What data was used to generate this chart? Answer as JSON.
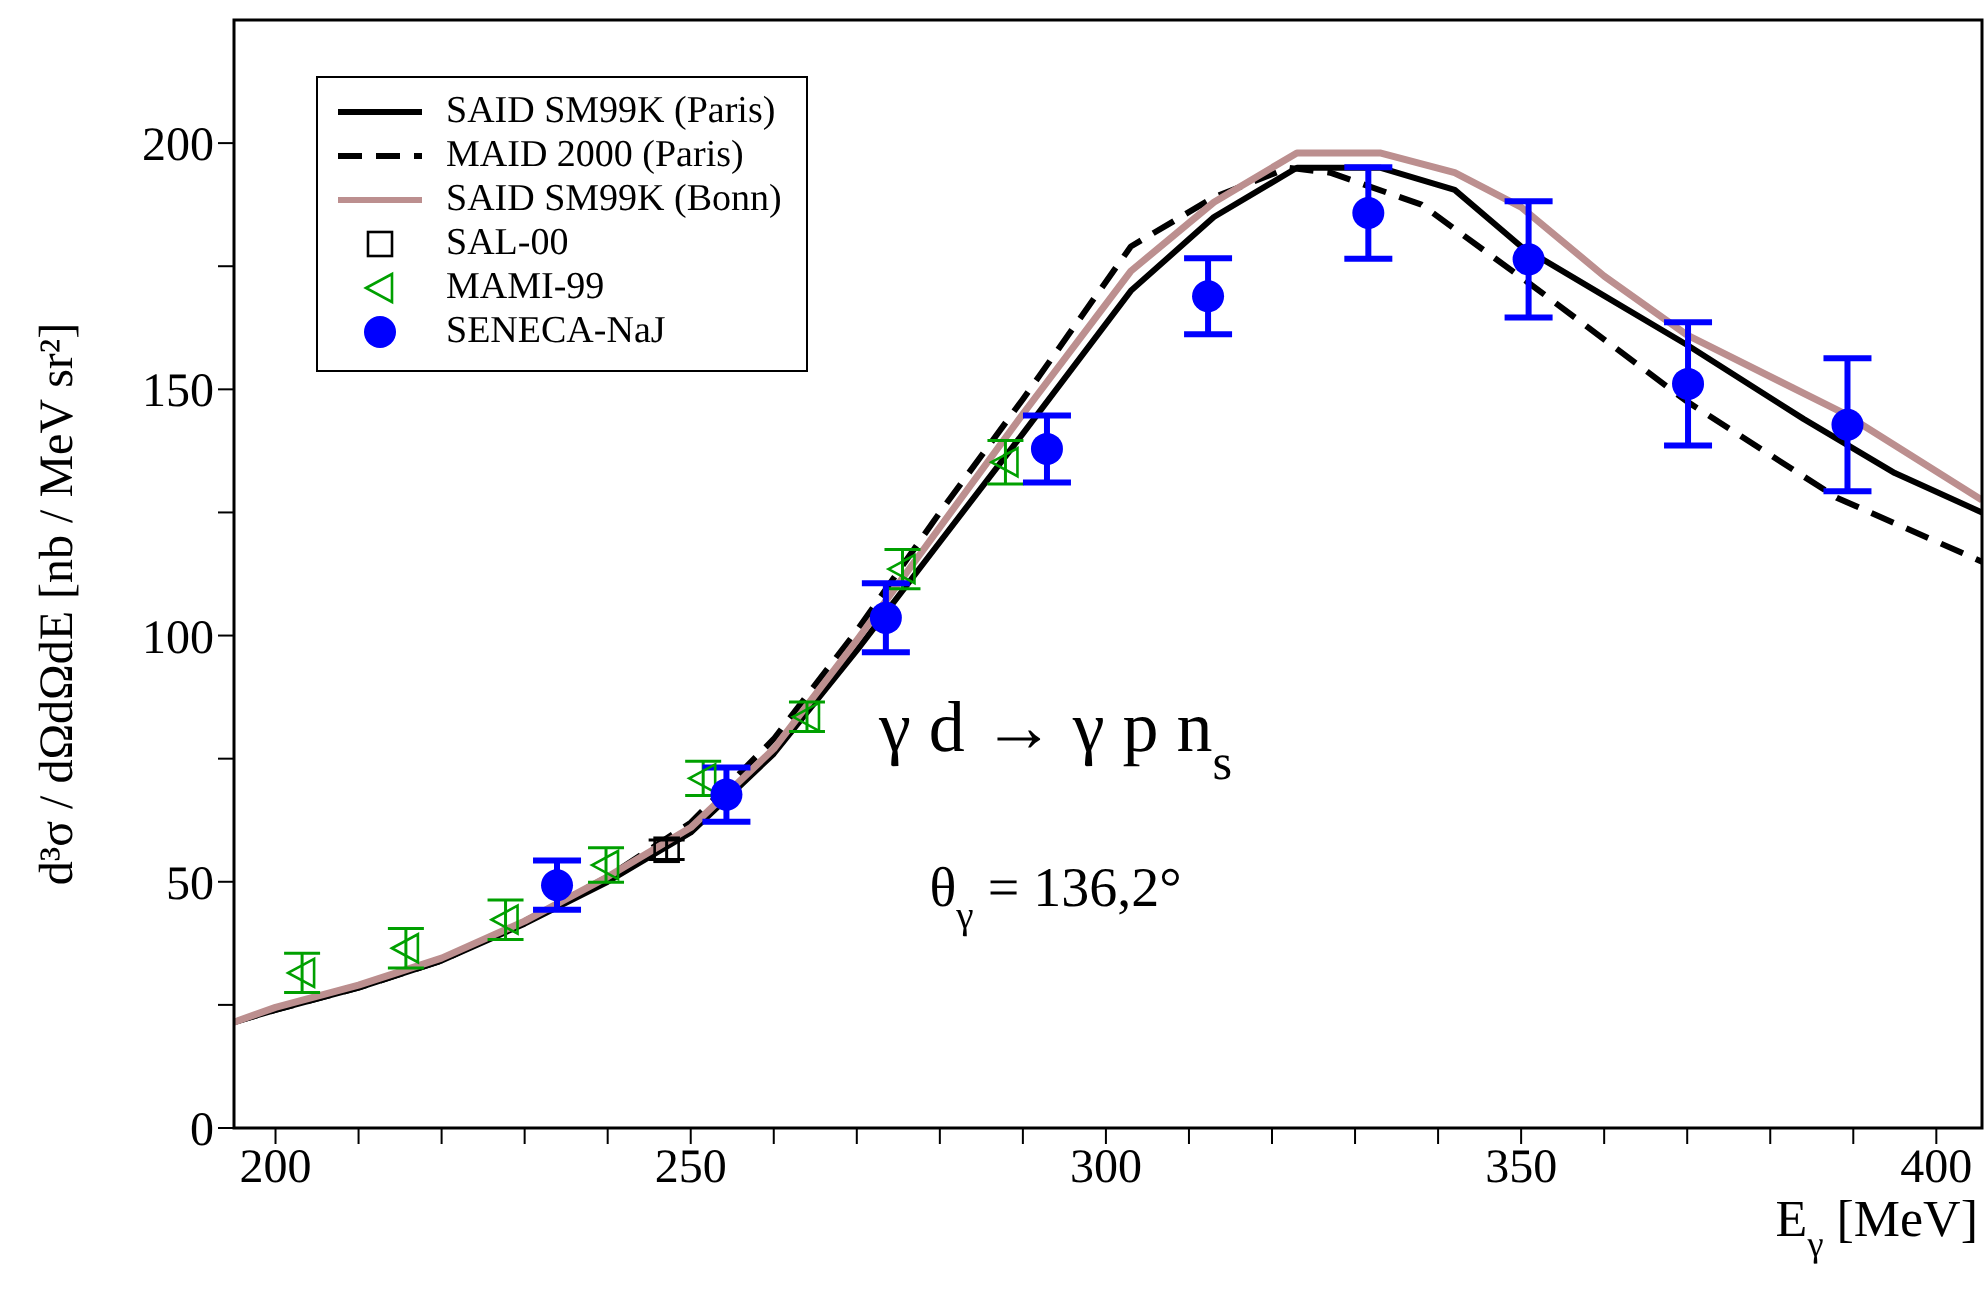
{
  "chart_data": {
    "type": "line",
    "xlabel": "E$_{γ}$  [MeV]",
    "ylabel": "d³σ / dΩdΩdE  [nb / MeV sr²]",
    "annotations": [
      "γ d → γ p n$_{s}$",
      "θ$_{γ}$ = 136,2°"
    ],
    "xlim": [
      195,
      405.5
    ],
    "ylim": [
      0,
      225
    ],
    "xticks": [
      200,
      {
        "value": 210,
        "label": null
      },
      {
        "value": 220,
        "label": null
      },
      {
        "value": 230,
        "label": null
      },
      {
        "value": 240,
        "label": null
      },
      250,
      {
        "value": 260,
        "label": null
      },
      {
        "value": 270,
        "label": null
      },
      {
        "value": 280,
        "label": null
      },
      {
        "value": 290,
        "label": null
      },
      300,
      {
        "value": 310,
        "label": null
      },
      {
        "value": 320,
        "label": null
      },
      {
        "value": 330,
        "label": null
      },
      {
        "value": 340,
        "label": null
      },
      350,
      {
        "value": 360,
        "label": null
      },
      {
        "value": 370,
        "label": null
      },
      {
        "value": 380,
        "label": null
      },
      {
        "value": 390,
        "label": null
      },
      400
    ],
    "yticks": [
      0,
      {
        "value": 25,
        "label": null
      },
      50,
      {
        "value": 75,
        "label": null
      },
      100,
      {
        "value": 125,
        "label": null
      },
      150,
      {
        "value": 175,
        "label": null
      },
      200
    ],
    "grid": false,
    "legend": "top left",
    "series": [
      {
        "name": "SAID SM99K (Paris)",
        "color": "#000000",
        "line_style": "solid",
        "marker": "none",
        "x": [
          195,
          200,
          210,
          220,
          230,
          240,
          250,
          260,
          270,
          280,
          290,
          303,
          313,
          323,
          333,
          342,
          350,
          359,
          370,
          384,
          395,
          405.5
        ],
        "values": [
          21.5,
          24,
          28.5,
          34,
          41.5,
          50,
          60,
          76,
          97,
          119,
          141,
          170,
          185,
          195,
          195,
          190.5,
          179,
          170,
          159,
          144,
          133,
          125
        ]
      },
      {
        "name": "MAID 2000 (Paris)",
        "color": "#000000",
        "line_style": "dashed",
        "marker": "none",
        "x": [
          195,
          200,
          210,
          220,
          230,
          240,
          250,
          260,
          270,
          280,
          290,
          303,
          313,
          322,
          327,
          338,
          351,
          370,
          388,
          405.5
        ],
        "values": [
          21.5,
          24,
          28.5,
          34,
          42,
          51,
          62,
          79,
          101,
          125,
          148,
          179,
          189,
          195,
          194,
          187.5,
          171.5,
          147.5,
          128,
          115
        ]
      },
      {
        "name": "SAID SM99K (Bonn)",
        "color": "#bc8f8f",
        "line_style": "solid",
        "marker": "none",
        "x": [
          195,
          200,
          210,
          220,
          230,
          240,
          250,
          260,
          270,
          280,
          290,
          303,
          313,
          323,
          333,
          342,
          350,
          360,
          370,
          389,
          405.5
        ],
        "values": [
          21.5,
          24.5,
          29,
          34.5,
          42,
          51,
          61,
          77,
          99,
          122,
          145,
          174,
          188,
          198,
          198,
          194,
          187,
          173,
          161,
          145,
          127.5
        ]
      },
      {
        "name": "SAL-00",
        "type": "scatter",
        "color": "#000000",
        "marker": "square",
        "x": [
          247.1
        ],
        "values": [
          56.5
        ],
        "errors": [
          2
        ]
      },
      {
        "name": "MAMI-99",
        "type": "scatter",
        "color": "#00a000",
        "marker": "triangle",
        "x": [
          203.2,
          215.7,
          227.7,
          239.8,
          251.5,
          264,
          275.5,
          287.9
        ],
        "values": [
          31.5,
          36.5,
          42.3,
          53.4,
          71,
          83.5,
          113.5,
          135.2
        ],
        "errors": [
          4,
          4,
          4,
          3.5,
          3.5,
          3,
          4,
          4.4
        ]
      },
      {
        "name": "SENECA-NaJ",
        "type": "scatter",
        "color": "#0000ff",
        "marker": "circle",
        "x": [
          233.9,
          254.3,
          273.5,
          292.9,
          312.3,
          331.6,
          350.9,
          370.1,
          389.3
        ],
        "values": [
          49.3,
          67.7,
          103.6,
          137.9,
          168.9,
          185.8,
          176.4,
          151.1,
          142.8
        ],
        "errors": [
          5,
          5.5,
          7,
          6.8,
          7.7,
          9.3,
          11.8,
          12.5,
          13.5
        ]
      }
    ]
  }
}
